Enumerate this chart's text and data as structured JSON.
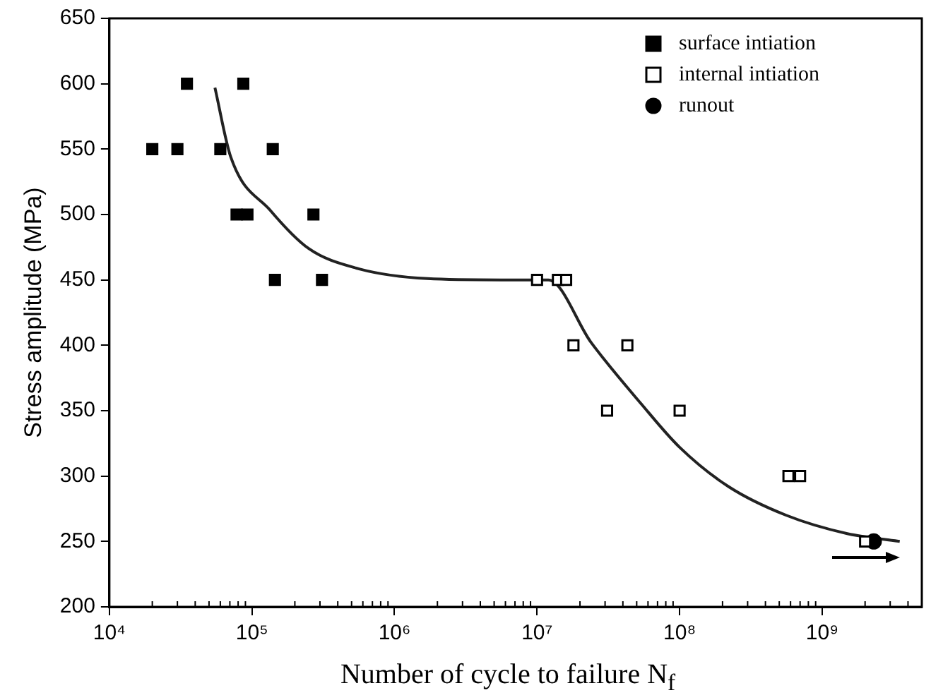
{
  "chart_data": {
    "type": "scatter",
    "xlabel": "Number of cycle to failure N$_{f}$",
    "ylabel": "Stress amplitude (MPa)",
    "log": "x",
    "xlim": [
      10000,
      5000000000
    ],
    "xticks": [
      {
        "value": 10000,
        "label": "10⁴"
      },
      {
        "value": 100000,
        "label": "10⁵"
      },
      {
        "value": 1000000,
        "label": "10⁶"
      },
      {
        "value": 10000000,
        "label": "10⁷"
      },
      {
        "value": 100000000,
        "label": "10⁸"
      },
      {
        "value": 1000000000,
        "label": "10⁹"
      }
    ],
    "ylim": [
      200,
      650
    ],
    "yticks": [
      200,
      250,
      300,
      350,
      400,
      450,
      500,
      550,
      600,
      650
    ],
    "grid": false,
    "legend": "top right",
    "series": [
      {
        "name": "surface intiation",
        "marker": "square",
        "color": "#000000",
        "x": [
          20000,
          30000,
          35000,
          60000,
          78000,
          93000,
          87000,
          140000,
          145000,
          270000,
          310000
        ],
        "values": [
          550,
          550,
          600,
          550,
          500,
          500,
          600,
          550,
          450,
          500,
          450
        ]
      },
      {
        "name": "internal intiation",
        "marker": "square",
        "color": "#000000",
        "x": [
          10000000,
          14000000,
          16000000,
          18000000,
          31000000,
          43000000,
          100000000,
          580000000,
          700000000,
          2000000000
        ],
        "values": [
          450,
          450,
          450,
          400,
          350,
          400,
          350,
          300,
          300,
          250
        ]
      },
      {
        "name": "runout",
        "marker": "circle",
        "color": "#000000",
        "x": [
          2300000000
        ],
        "values": [
          250
        ]
      },
      {
        "type": "line",
        "marker": "none",
        "color": "#222222",
        "x": [
          55000,
          71000,
          135000,
          250000,
          540000,
          1700000,
          5600000,
          12000000,
          24000000,
          54000000,
          100000000,
          220000000,
          560000000,
          1500000000,
          3500000000
        ],
        "values": [
          597,
          544,
          503,
          474,
          459,
          451,
          450,
          450,
          402,
          355,
          322,
          292,
          270,
          256,
          250
        ]
      }
    ]
  }
}
